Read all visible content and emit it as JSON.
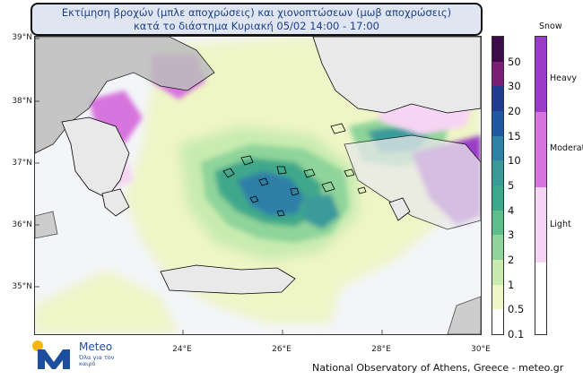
{
  "title": {
    "line1": "Εκτίμηση βροχών (μπλε αποχρώσεις) και χιονοπτώσεων (μωβ αποχρώσεις)",
    "line2": "κατά το διάστημα Κυριακή 05/02 14:00 - 17:00"
  },
  "axes": {
    "lat_labels": [
      "39°N",
      "38°N",
      "37°N",
      "36°N",
      "35°N"
    ],
    "lon_labels": [
      "24°E",
      "26°E",
      "28°E",
      "30°E"
    ]
  },
  "rain_legend": {
    "labels": [
      "50",
      "30",
      "20",
      "15",
      "10",
      "5",
      "4",
      "3",
      "2",
      "1",
      "0.5",
      "0.1"
    ],
    "colors": [
      "#3d0a4a",
      "#7a1f75",
      "#1f3d8c",
      "#1f5aa0",
      "#2f7fa8",
      "#3a9a9a",
      "#3fa88a",
      "#5ebd8a",
      "#8fd49a",
      "#c8ebb0",
      "#eef5c6",
      "#ffffff"
    ]
  },
  "snow_legend": {
    "title": "Snow",
    "labels": [
      "Heavy",
      "Moderate",
      "Light"
    ],
    "colors": [
      "#9a3cc7",
      "#d774de",
      "#f6d4f3",
      "#ffffff"
    ]
  },
  "logo": {
    "name": "Meteo",
    "tagline": "Όλα για τον καιρό"
  },
  "credit": "National Observatory of Athens, Greece - meteo.gr"
}
